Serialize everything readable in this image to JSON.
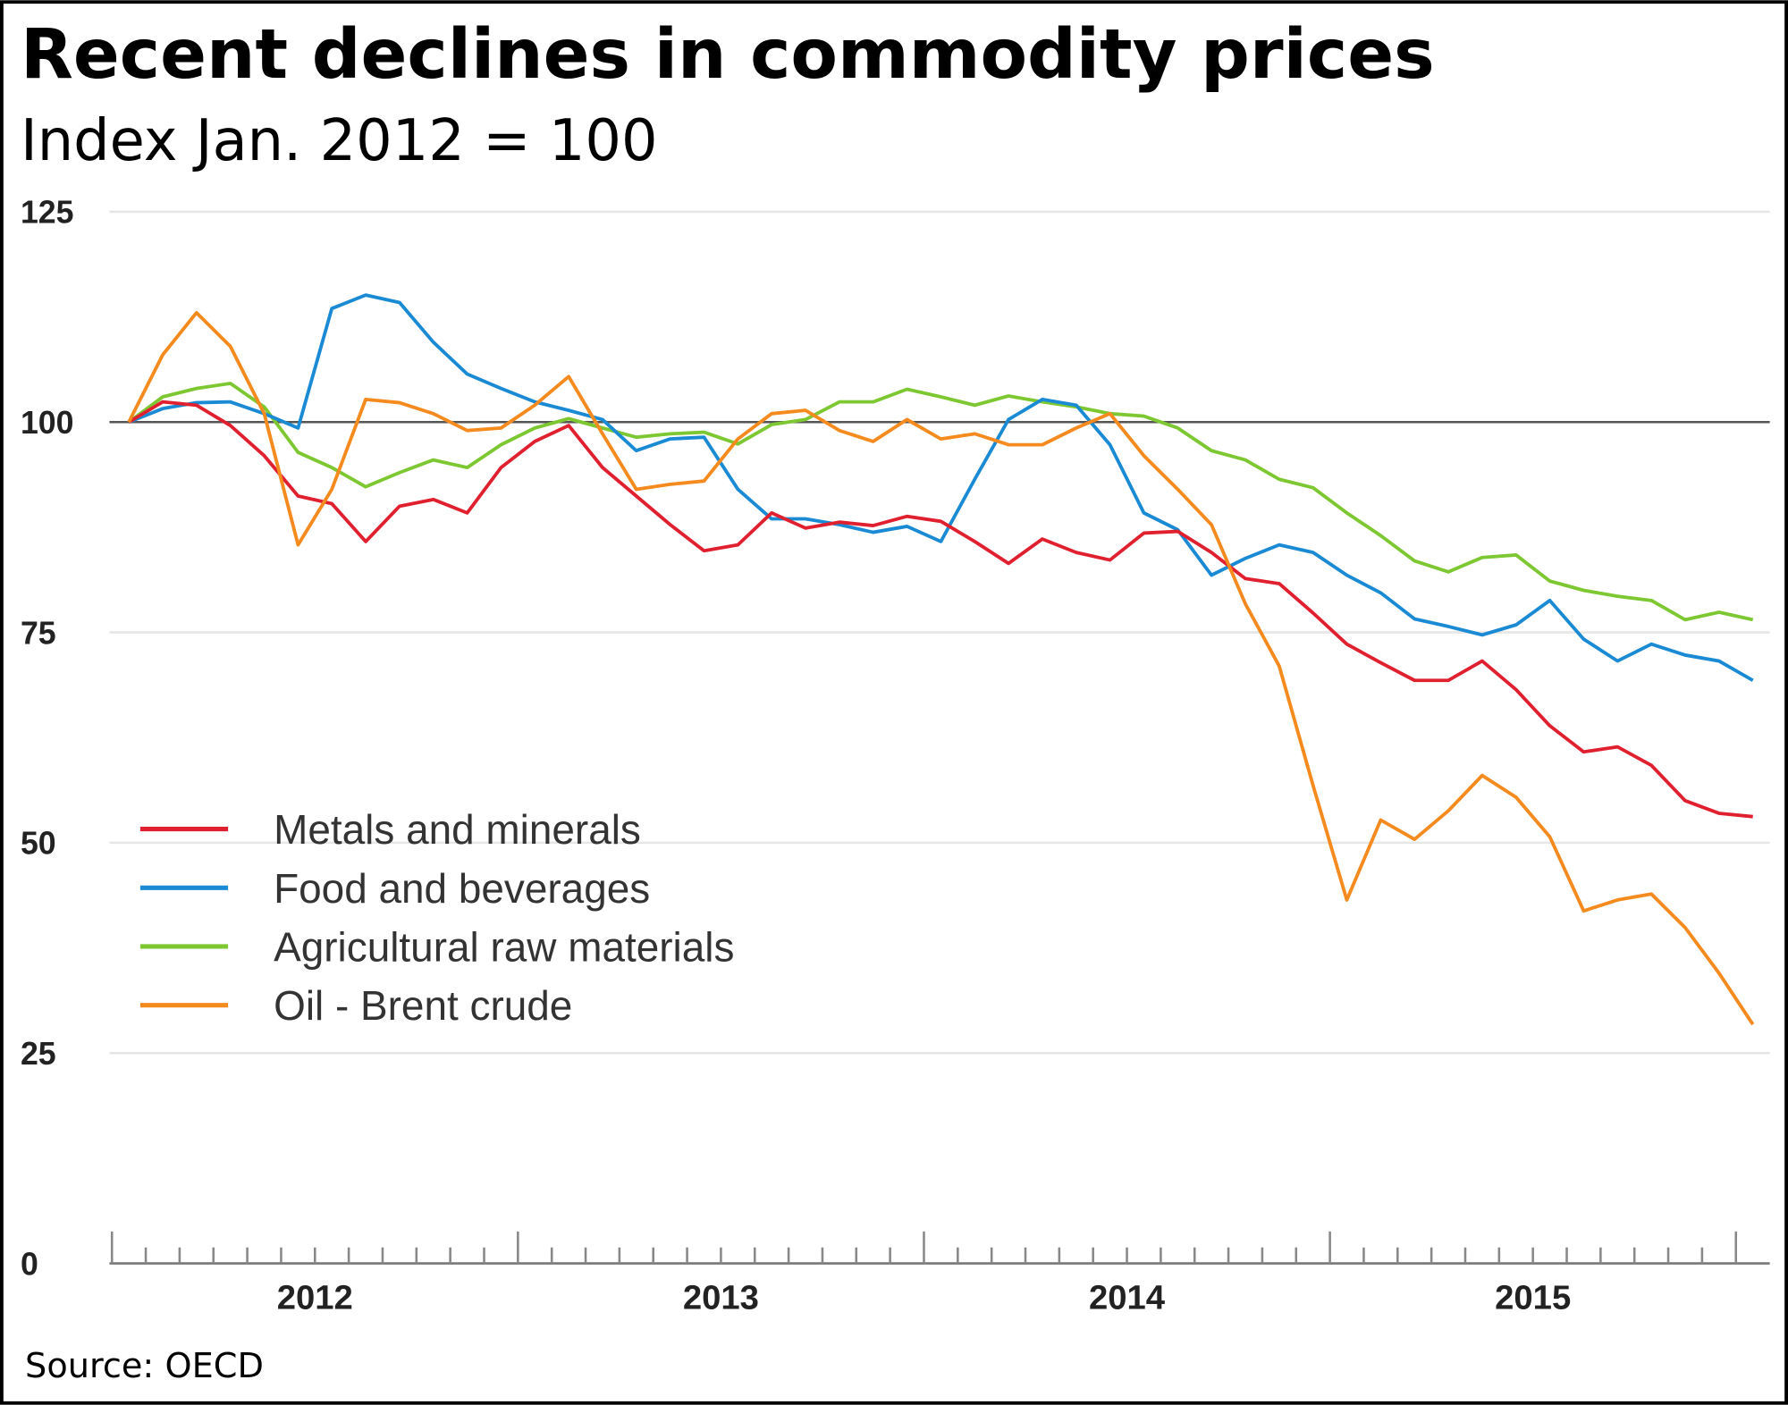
{
  "chart_data": {
    "type": "line",
    "title": "Recent declines in commodity prices",
    "subtitle": "Index Jan. 2012 = 100",
    "source": "Source: OECD",
    "xlabel": "",
    "ylabel": "",
    "x_start": "2012-01",
    "frequency": "monthly",
    "x_tick_labels": [
      "2012",
      "2013",
      "2014",
      "2015"
    ],
    "y_ticks": [
      0,
      25,
      50,
      75,
      100,
      125
    ],
    "ylim": [
      0,
      125
    ],
    "reference_line": 100,
    "grid": true,
    "legend_position": "lower-left",
    "series": [
      {
        "name": "Metals and minerals",
        "color": "#e0202f",
        "values": [
          100,
          102.4,
          102,
          99.6,
          96,
          91.2,
          90.3,
          85.8,
          90,
          90.8,
          89.2,
          94.6,
          97.7,
          99.6,
          94.6,
          91.2,
          87.8,
          84.7,
          85.4,
          89.2,
          87.4,
          88.1,
          87.7,
          88.8,
          88.2,
          85.8,
          83.2,
          86.1,
          84.5,
          83.6,
          86.8,
          87,
          84.5,
          81.4,
          80.8,
          77.3,
          73.6,
          71.4,
          69.3,
          69.3,
          71.6,
          68.2,
          63.9,
          60.8,
          61.4,
          59.2,
          55,
          53.5,
          53.1
        ]
      },
      {
        "name": "Food and beverages",
        "color": "#1a8ad4",
        "values": [
          100,
          101.6,
          102.3,
          102.4,
          101,
          99.3,
          113.5,
          115.1,
          114.2,
          109.5,
          105.7,
          104,
          102.4,
          101.4,
          100.3,
          96.6,
          98,
          98.2,
          92,
          88.5,
          88.5,
          87.8,
          86.9,
          87.6,
          85.8,
          93.2,
          100.3,
          102.7,
          102,
          97.3,
          89.2,
          87.2,
          81.8,
          83.8,
          85.4,
          84.5,
          81.8,
          79.7,
          76.6,
          75.7,
          74.7,
          75.9,
          78.8,
          74.2,
          71.6,
          73.6,
          72.3,
          71.6,
          69.3
        ]
      },
      {
        "name": "Agricultural raw materials",
        "color": "#7dc832",
        "values": [
          100,
          103,
          104,
          104.6,
          101.8,
          96.4,
          94.6,
          92.3,
          94,
          95.5,
          94.6,
          97.3,
          99.3,
          100.4,
          99.3,
          98.2,
          98.6,
          98.8,
          97.4,
          99.7,
          100.3,
          102.4,
          102.4,
          103.9,
          103,
          102,
          103.1,
          102.4,
          101.8,
          101,
          100.7,
          99.3,
          96.6,
          95.5,
          93.2,
          92.2,
          89.2,
          86.5,
          83.5,
          82.2,
          83.9,
          84.2,
          81.1,
          80,
          79.3,
          78.8,
          76.5,
          77.4,
          76.5
        ]
      },
      {
        "name": "Oil - Brent crude",
        "color": "#f58a1f",
        "values": [
          100,
          108,
          113,
          109,
          101,
          85.4,
          92,
          102.7,
          102.3,
          101,
          99,
          99.3,
          102,
          105.4,
          98.6,
          92,
          92.6,
          93,
          98,
          101,
          101.4,
          99,
          97.7,
          100.3,
          98,
          98.6,
          97.3,
          97.3,
          99.3,
          101,
          96,
          92,
          87.8,
          78.4,
          71,
          56.8,
          43.2,
          52.7,
          50.4,
          53.8,
          58,
          55.4,
          50.7,
          41.9,
          43.2,
          43.9,
          39.9,
          34.5,
          28.4
        ]
      }
    ]
  }
}
